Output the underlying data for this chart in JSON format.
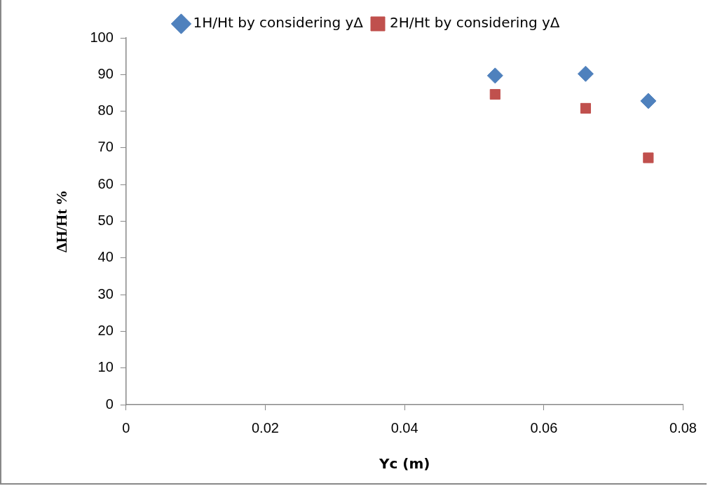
{
  "chart_data": {
    "type": "scatter",
    "xlabel": "Yc (m)",
    "ylabel": "ΔH/Ht %",
    "x": [
      0.053,
      0.066,
      0.075
    ],
    "series": [
      {
        "name": "1H/Ht by considering yΔ",
        "color": "#4f81bd",
        "marker": "diamond",
        "values": [
          89.7,
          90.2,
          82.8
        ]
      },
      {
        "name": "2H/Ht by considering yΔ",
        "color": "#c0504d",
        "marker": "square",
        "values": [
          84.6,
          80.8,
          67.3
        ]
      }
    ],
    "xlim": [
      0,
      0.08
    ],
    "xticks": [
      0,
      0.02,
      0.04,
      0.06,
      0.08
    ],
    "ylim": [
      0,
      100
    ],
    "yticks": [
      0,
      10,
      20,
      30,
      40,
      50,
      60,
      70,
      80,
      90,
      100
    ],
    "grid": false,
    "legend": "top"
  }
}
